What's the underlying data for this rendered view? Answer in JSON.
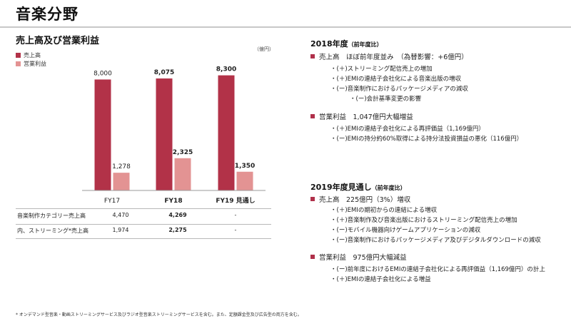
{
  "page": {
    "title": "音楽分野"
  },
  "chart": {
    "title": "売上高及び営業利益",
    "unit": "（億円）"
  },
  "chart_data": {
    "type": "bar",
    "categories": [
      "FY17",
      "FY18",
      "FY19 見通し"
    ],
    "series": [
      {
        "name": "売上高",
        "values": [
          8000,
          8075,
          8300
        ],
        "labels": [
          "8,000",
          "8,075",
          "8,300"
        ],
        "color": "#b23248"
      },
      {
        "name": "営業利益",
        "values": [
          1278,
          2325,
          1350
        ],
        "labels": [
          "1,278",
          "2,325",
          "1,350"
        ],
        "color": "#e39393"
      }
    ],
    "ylim": [
      0,
      9000
    ]
  },
  "table": {
    "rows": [
      {
        "label": "音楽制作カテゴリー売上高",
        "values": [
          "4,470",
          "4,269",
          "-"
        ]
      },
      {
        "label": "内、ストリーミング*売上高",
        "values": [
          "1,974",
          "2,275",
          "-"
        ]
      }
    ]
  },
  "right": {
    "s1": {
      "title": "2018年度",
      "title_small": "（前年度比）",
      "items": [
        {
          "label": "売上高　ほぼ前年度並み　（為替影響：+6億円）",
          "subs": [
            "・(＋)ストリーミング配信売上の増加",
            "・(＋)EMIの連結子会社化による音楽出版の増収",
            "・(ー)音楽制作におけるパッケージメディアの減収",
            "・(ー)会計基準変更の影響"
          ]
        },
        {
          "label": "営業利益　1,047億円大幅増益",
          "subs": [
            "・(＋)EMIの連結子会社化による再評価益（1,169億円）",
            "・(ー)EMIの持分約60%取得による持分法投資損益の悪化（116億円）"
          ]
        }
      ]
    },
    "s2": {
      "title": "2019年度見通し",
      "title_small": "（前年度比）",
      "items": [
        {
          "label": "売上高　225億円（3%）増収",
          "subs": [
            "・(＋)EMIの期初からの連結による増収",
            "・(＋)音楽制作及び音楽出版におけるストリーミング配信売上の増加",
            "・(ー)モバイル機器向けゲームアプリケーションの減収",
            "・(ー)音楽制作におけるパッケージメディア及びデジタルダウンロードの減収"
          ]
        },
        {
          "label": "営業利益　975億円大幅減益",
          "subs": [
            "・(ー)前年度におけるEMIの連結子会社化による再評価益（1,169億円）の計上",
            "・(＋)EMIの連結子会社化による増益"
          ]
        }
      ]
    }
  },
  "footnote": "* オンデマンド型音楽・動画ストリーミングサービス及びラジオ型音楽ストリーミングサービスを含む。また、定額課金型及び広告型の両方を含む。"
}
